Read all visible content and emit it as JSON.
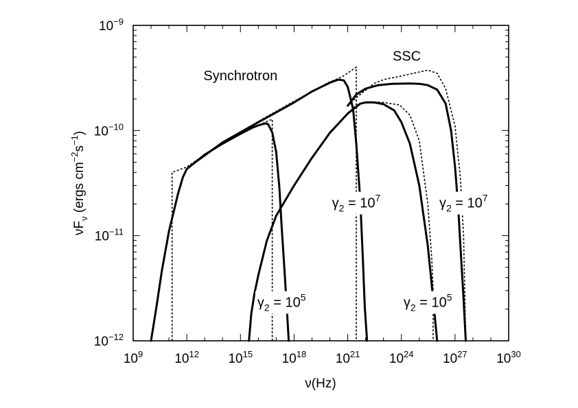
{
  "chart_data": {
    "type": "line",
    "xlabel": "ν(Hz)",
    "ylabel": "νF_ν (ergs cm⁻² s⁻¹)",
    "x_scale": "log",
    "y_scale": "log",
    "xlim": [
      1000000000.0,
      1e+30
    ],
    "ylim": [
      1e-12,
      1e-09
    ],
    "x_ticks": [
      {
        "value": 1000000000.0,
        "base": "10",
        "exp": "9"
      },
      {
        "value": 1000000000000.0,
        "base": "10",
        "exp": "12"
      },
      {
        "value": 1000000000000000.0,
        "base": "10",
        "exp": "15"
      },
      {
        "value": 1e+18,
        "base": "10",
        "exp": "18"
      },
      {
        "value": 1e+21,
        "base": "10",
        "exp": "21"
      },
      {
        "value": 1e+24,
        "base": "10",
        "exp": "24"
      },
      {
        "value": 1e+27,
        "base": "10",
        "exp": "27"
      },
      {
        "value": 1e+30,
        "base": "10",
        "exp": "30"
      }
    ],
    "y_ticks": [
      {
        "value": 1e-12,
        "base": "10",
        "exp": "−12"
      },
      {
        "value": 1e-11,
        "base": "10",
        "exp": "−11"
      },
      {
        "value": 1e-10,
        "base": "10",
        "exp": "−10"
      },
      {
        "value": 1e-09,
        "base": "10",
        "exp": "−9"
      }
    ],
    "annotations": [
      {
        "id": "synchrotron",
        "text": "Synchrotron",
        "x": 1000000000000000.0,
        "y": 3e-10
      },
      {
        "id": "ssc",
        "text": "SSC",
        "x": 2e+24,
        "y": 4.6e-10
      },
      {
        "id": "gamma-sync-1e5",
        "prefix": "γ",
        "sub": "2",
        "mid": " = 10",
        "sup": "5",
        "x": 2e+17,
        "y": 2.1e-12
      },
      {
        "id": "gamma-sync-1e7",
        "prefix": "γ",
        "sub": "2",
        "mid": " = 10",
        "sup": "7",
        "x": 3e+21,
        "y": 1.85e-11
      },
      {
        "id": "gamma-ssc-1e5",
        "prefix": "γ",
        "sub": "2",
        "mid": " = 10",
        "sup": "5",
        "x": 3e+25,
        "y": 2.1e-12
      },
      {
        "id": "gamma-ssc-1e7",
        "prefix": "γ",
        "sub": "2",
        "mid": " = 10",
        "sup": "7",
        "x": 3e+27,
        "y": 1.85e-11
      }
    ],
    "series": [
      {
        "style": "solid",
        "points": [
          [
            10000000000.0,
            1e-12
          ],
          [
            20000000000.0,
            2.1e-12
          ],
          [
            40000000000.0,
            4.6e-12
          ],
          [
            100000000000.0,
            1.1e-11
          ],
          [
            200000000000.0,
            1.78e-11
          ],
          [
            320000000000.0,
            2.5e-11
          ],
          [
            600000000000.0,
            3.6e-11
          ],
          [
            1000000000000.0,
            4.3e-11
          ],
          [
            2000000000000.0,
            4.75e-11
          ],
          [
            3000000000000.0,
            5e-11
          ],
          [
            10000000000000.0,
            5.9e-11
          ],
          [
            100000000000000.0,
            7.5e-11
          ],
          [
            1000000000000000.0,
            9.3e-11
          ],
          [
            5000000000000000.0,
            1.07e-10
          ],
          [
            1e+16,
            1.12e-10
          ],
          [
            2.5e+16,
            1.17e-10
          ],
          [
            3.5e+16,
            1.15e-10
          ],
          [
            6e+16,
            9.6e-11
          ],
          [
            1e+17,
            6.2e-11
          ],
          [
            1.5e+17,
            2.85e-11
          ],
          [
            2e+17,
            1.25e-11
          ],
          [
            3e+17,
            4.3e-12
          ],
          [
            4e+17,
            1.9e-12
          ],
          [
            5e+17,
            1e-12
          ]
        ]
      },
      {
        "style": "solid",
        "points": [
          [
            1000000000000.0,
            4.3e-11
          ],
          [
            3000000000000.0,
            5e-11
          ],
          [
            100000000000000.0,
            7.7e-11
          ],
          [
            1e+16,
            1.2e-10
          ],
          [
            1e+18,
            1.85e-10
          ],
          [
            1e+19,
            2.35e-10
          ],
          [
            1e+20,
            2.85e-10
          ],
          [
            3e+20,
            3.05e-10
          ],
          [
            6e+20,
            3e-10
          ],
          [
            1e+21,
            2.6e-10
          ],
          [
            2e+21,
            1.6e-10
          ],
          [
            3e+21,
            7.5e-11
          ],
          [
            5e+21,
            2.2e-11
          ],
          [
            7e+21,
            6e-12
          ],
          [
            9e+21,
            2.1e-12
          ],
          [
            1.2e+22,
            1e-12
          ]
        ]
      },
      {
        "style": "solid",
        "points": [
          [
            3000000000000000.0,
            1e-12
          ],
          [
            4000000000000000.0,
            1.8e-12
          ],
          [
            6000000000000000.0,
            2.8e-12
          ],
          [
            1e+16,
            4.2e-12
          ],
          [
            3e+16,
            9e-12
          ],
          [
            1e+17,
            1.55e-11
          ],
          [
            1e+18,
            3e-11
          ],
          [
            1e+19,
            5.5e-11
          ],
          [
            1e+20,
            9.5e-11
          ],
          [
            1e+21,
            1.45e-10
          ],
          [
            5e+21,
            1.8e-10
          ],
          [
            1e+22,
            1.85e-10
          ],
          [
            3e+22,
            1.85e-10
          ],
          [
            1e+23,
            1.78e-10
          ],
          [
            4e+23,
            1.55e-10
          ],
          [
            1e+24,
            1.2e-10
          ],
          [
            3e+24,
            7.5e-11
          ],
          [
            1e+25,
            3e-11
          ],
          [
            3e+25,
            8e-12
          ],
          [
            6e+25,
            2.5e-12
          ],
          [
            1e+26,
            1e-12
          ]
        ]
      },
      {
        "style": "solid",
        "points": [
          [
            1e+21,
            1.72e-10
          ],
          [
            3e+21,
            2.2e-10
          ],
          [
            1e+22,
            2.5e-10
          ],
          [
            5e+22,
            2.7e-10
          ],
          [
            3e+23,
            2.78e-10
          ],
          [
            3e+24,
            2.8e-10
          ],
          [
            1e+25,
            2.78e-10
          ],
          [
            3e+25,
            2.7e-10
          ],
          [
            1e+26,
            2.45e-10
          ],
          [
            3e+26,
            1.8e-10
          ],
          [
            6e+26,
            1e-10
          ],
          [
            1e+27,
            4.5e-11
          ],
          [
            1.5e+27,
            1.9e-11
          ],
          [
            2e+27,
            8e-12
          ],
          [
            3e+27,
            2.5e-12
          ],
          [
            4e+27,
            1e-12
          ]
        ]
      },
      {
        "style": "dotted",
        "points": [
          [
            150000000000.0,
            1e-12
          ],
          [
            150000000000.0,
            4e-11
          ],
          [
            1000000000000.0,
            4.5e-11
          ],
          [
            10000000000000.0,
            5.9e-11
          ],
          [
            1000000000000000.0,
            9.3e-11
          ],
          [
            3e+16,
            1.22e-10
          ],
          [
            6e+16,
            1.28e-10
          ],
          [
            6e+16,
            1e-12
          ]
        ]
      },
      {
        "style": "dotted",
        "points": [
          [
            3000000000000.0,
            5.1e-11
          ],
          [
            1e+16,
            1.22e-10
          ],
          [
            1e+18,
            1.9e-10
          ],
          [
            1e+20,
            2.9e-10
          ],
          [
            5e+20,
            3.25e-10
          ],
          [
            3e+21,
            4e-10
          ],
          [
            3e+21,
            1e-12
          ]
        ]
      },
      {
        "style": "dotted",
        "points": [
          [
            1e+21,
            1.47e-10
          ],
          [
            3e+21,
            1.73e-10
          ],
          [
            1e+22,
            1.88e-10
          ],
          [
            1e+23,
            1.85e-10
          ],
          [
            8e+23,
            1.75e-10
          ],
          [
            3e+24,
            1.4e-10
          ],
          [
            1e+25,
            8e-11
          ],
          [
            3e+25,
            2e-11
          ],
          [
            5e+25,
            6e-12
          ],
          [
            6e+25,
            3e-12
          ],
          [
            6e+25,
            1e-12
          ]
        ]
      },
      {
        "style": "dotted",
        "points": [
          [
            1e+21,
            1.75e-10
          ],
          [
            5e+21,
            2.2e-10
          ],
          [
            3e+22,
            2.8e-10
          ],
          [
            1e+23,
            3.05e-10
          ],
          [
            1e+24,
            3.3e-10
          ],
          [
            1e+25,
            3.6e-10
          ],
          [
            3e+25,
            3.75e-10
          ],
          [
            1e+26,
            3.5e-10
          ],
          [
            3e+26,
            2.5e-10
          ],
          [
            1e+27,
            1.1e-10
          ],
          [
            2e+27,
            3.5e-11
          ],
          [
            3e+27,
            1e-11
          ],
          [
            4e+27,
            1e-12
          ]
        ]
      }
    ]
  }
}
